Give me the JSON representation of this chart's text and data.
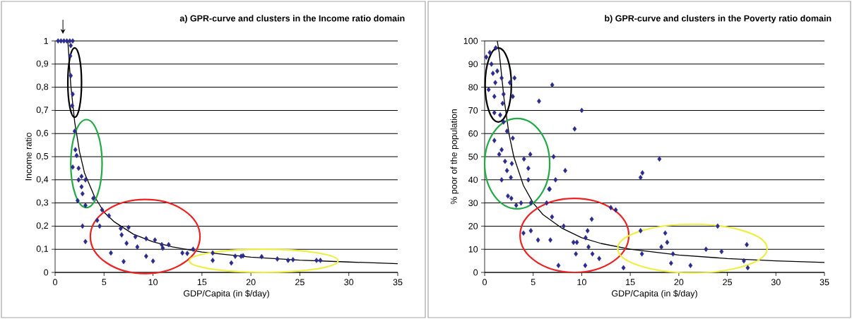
{
  "chart_data": [
    {
      "type": "scatter",
      "title": "a) GPR-curve and clusters in the Income ratio domain",
      "xlabel": "GDP/Capita (in $/day)",
      "ylabel": "Income ratio",
      "xlim": [
        0,
        35
      ],
      "xticks": [
        0,
        5,
        10,
        15,
        20,
        25,
        30,
        35
      ],
      "ylim": [
        0,
        1
      ],
      "yticks": [
        0,
        {
          "value": 0.1,
          "label": "0,1"
        },
        {
          "value": 0.2,
          "label": "0,2"
        },
        {
          "value": 0.3,
          "label": "0,3"
        },
        {
          "value": 0.4,
          "label": "0,4"
        },
        {
          "value": 0.5,
          "label": "0,5"
        },
        {
          "value": 0.6,
          "label": "0,6"
        },
        {
          "value": 0.7,
          "label": "0,7"
        },
        {
          "value": 0.8,
          "label": "0,8"
        },
        {
          "value": 0.9,
          "label": "0,9"
        },
        1
      ],
      "grid": "y",
      "series": [
        {
          "marker": "diamond",
          "color": "#2b2b8c",
          "x": [
            0.3,
            0.6,
            0.9,
            1.2,
            1.5,
            1.8,
            1.6,
            1.55,
            1.6,
            1.8,
            1.75,
            2.0,
            2.07,
            2.2,
            1.8,
            2.4,
            2.7,
            2.4,
            2.7,
            3.1,
            2.8,
            2.3,
            3.1,
            3.9,
            2.8,
            3.1,
            4.8,
            4.3,
            4.55,
            5.5,
            5.7,
            6.7,
            6.8,
            7.0,
            7.3,
            7.5,
            8.2,
            8.4,
            9.3,
            9.3,
            10.0,
            10.2,
            10.9,
            11.0,
            11.6,
            13.0,
            13.5,
            14.1,
            16.1,
            16.1,
            18.0,
            18.4,
            19.0,
            19.2,
            21.1,
            22.7,
            23.8,
            24.3,
            26.7,
            27.1
          ],
          "values": [
            1,
            1,
            1,
            1,
            1,
            1,
            0.98,
            0.935,
            0.85,
            0.77,
            0.72,
            0.61,
            0.53,
            0.505,
            0.455,
            0.45,
            0.415,
            0.4,
            0.37,
            0.4,
            0.34,
            0.31,
            0.29,
            0.32,
            0.2,
            0.133,
            0.27,
            0.225,
            0.2,
            0.245,
            0.084,
            0.19,
            0.162,
            0.047,
            0.126,
            0.194,
            0.154,
            0.11,
            0.146,
            0.07,
            0.049,
            0.14,
            0.12,
            0.105,
            0.12,
            0.084,
            0.082,
            0.1,
            0.084,
            0.052,
            0.041,
            0.07,
            0.07,
            0.072,
            0.068,
            0.058,
            0.052,
            0.055,
            0.052,
            0.052
          ]
        },
        {
          "type": "line",
          "marker": "none",
          "color": "#000000",
          "x": [
            1.3,
            1.6,
            2,
            2.5,
            3,
            4,
            5,
            6,
            8,
            10,
            12,
            15,
            20,
            25,
            30,
            35
          ],
          "values": [
            1.0,
            0.81,
            0.65,
            0.52,
            0.43,
            0.33,
            0.26,
            0.22,
            0.165,
            0.132,
            0.11,
            0.088,
            0.066,
            0.053,
            0.045,
            0.038
          ]
        }
      ]
    },
    {
      "type": "scatter",
      "title": "b) GPR-curve and clusters in the Poverty ratio domain",
      "xlabel": "GDP/Capita (in $/day)",
      "ylabel": "% poor of the population",
      "xlim": [
        0,
        35
      ],
      "xticks": [
        0,
        5,
        10,
        15,
        20,
        25,
        30,
        35
      ],
      "ylim": [
        0,
        100
      ],
      "yticks": [
        0,
        10,
        20,
        30,
        40,
        50,
        60,
        70,
        80,
        90,
        100
      ],
      "grid": "y",
      "series": [
        {
          "marker": "diamond",
          "color": "#2b2b8c",
          "x": [
            0.17,
            0.53,
            1.14,
            0.7,
            0.85,
            1.3,
            1.75,
            3.08,
            2.6,
            1.1,
            0.41,
            1.0,
            1.95,
            2.9,
            1.85,
            1.0,
            1.6,
            1.95,
            2.3,
            2.9,
            1.0,
            1.75,
            1.5,
            2.1,
            2.8,
            2.3,
            2.7,
            1.75,
            4.05,
            4.7,
            4.5,
            4.5,
            6.96,
            5.6,
            10.0,
            9.27,
            7.1,
            7.3,
            8.3,
            6.7,
            16.06,
            16.25,
            2.4,
            18.0,
            6.64,
            6.39,
            2.75,
            3.25,
            3.75,
            4.76,
            13.0,
            13.5,
            6.94,
            8.14,
            11.03,
            4.0,
            4.76,
            5.5,
            6.77,
            7.6,
            9.15,
            9.5,
            9.4,
            10.36,
            10.4,
            10.6,
            10.7,
            11.1,
            11.8,
            14.3,
            16.06,
            16.2,
            18.2,
            18.6,
            18.8,
            19.4,
            19.2,
            21.2,
            22.8,
            24.0,
            24.4,
            27.0,
            26.7,
            27.1
          ],
          "values": [
            93,
            95,
            97,
            90,
            86,
            87,
            84,
            84,
            82,
            82,
            79,
            76,
            77,
            76,
            73,
            69,
            68,
            65,
            61,
            58,
            57,
            53,
            51,
            48,
            47,
            44,
            41,
            40,
            49,
            51,
            45,
            40,
            81,
            74,
            70,
            62,
            50,
            40,
            44,
            36,
            41,
            43,
            33,
            49,
            36,
            30,
            32,
            29,
            30,
            30,
            28,
            27,
            24,
            20,
            23,
            17,
            18,
            14,
            14,
            3,
            13,
            13,
            8,
            3,
            15,
            18,
            11,
            8,
            6,
            2,
            18,
            8,
            11,
            17,
            13,
            8,
            4,
            3,
            10,
            20,
            9,
            12,
            5,
            2
          ]
        },
        {
          "type": "line",
          "marker": "none",
          "color": "#000000",
          "x": [
            1.3,
            1.5,
            2,
            2.5,
            3,
            4,
            5,
            6,
            8,
            10,
            12,
            15,
            20,
            25,
            30,
            35
          ],
          "values": [
            100,
            95,
            75,
            60,
            50,
            37.5,
            30,
            25,
            19,
            15,
            12.5,
            10,
            7.5,
            6,
            5,
            4.3
          ]
        }
      ]
    }
  ]
}
